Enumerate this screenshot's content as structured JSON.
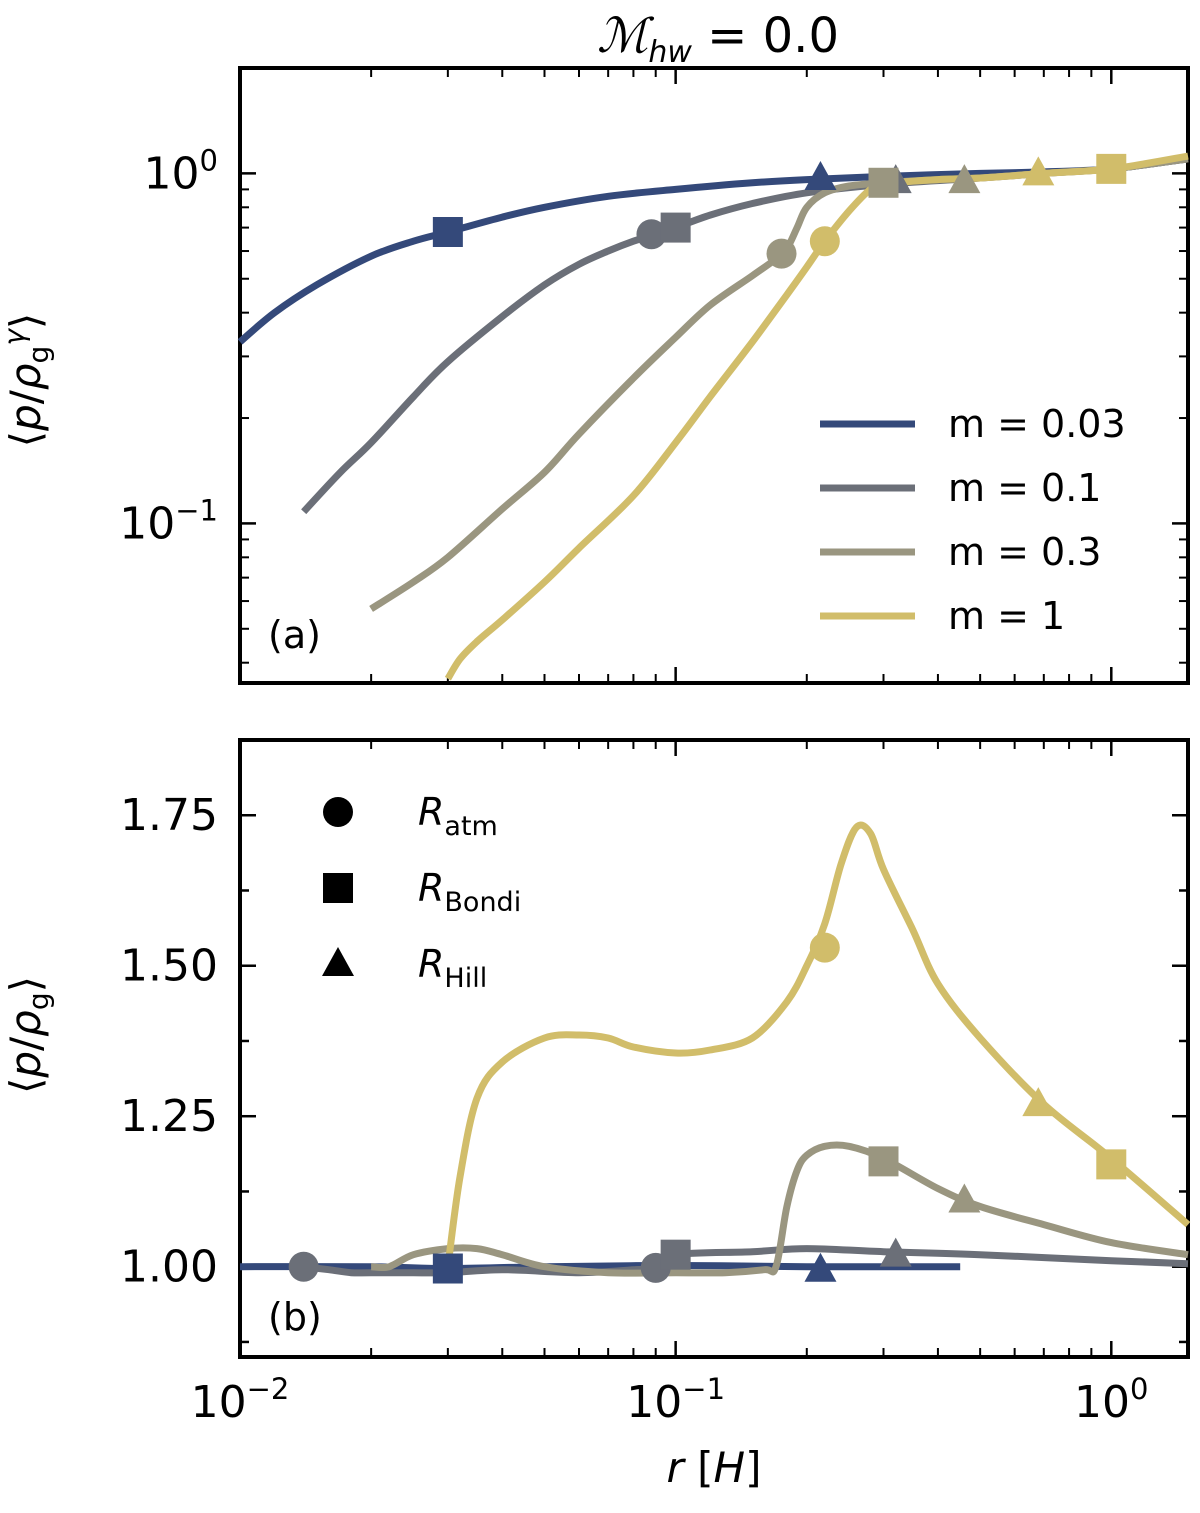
{
  "title": {
    "main": "ℳ",
    "sub": "hw",
    "rest": " = 0.0"
  },
  "chart_data": [
    {
      "type": "line",
      "panel_label": "(a)",
      "ylabel": "⟨p/ρ_g^γ⟩",
      "yscale": "log",
      "xscale": "log",
      "xlim": [
        0.01,
        1.5
      ],
      "ylim": [
        0.035,
        2.0
      ],
      "yticks": [
        {
          "base": "10",
          "exp": "−1",
          "value": 0.1
        },
        {
          "base": "10",
          "exp": "0",
          "value": 1
        }
      ],
      "series": [
        {
          "name": "m = 0.03",
          "color": "#34497a",
          "x": [
            0.01,
            0.012,
            0.015,
            0.02,
            0.025,
            0.03,
            0.04,
            0.05,
            0.07,
            0.1,
            0.15,
            0.2,
            0.3,
            0.5,
            0.7,
            1.0,
            1.5
          ],
          "y": [
            0.33,
            0.4,
            0.48,
            0.58,
            0.64,
            0.68,
            0.75,
            0.8,
            0.86,
            0.9,
            0.94,
            0.96,
            0.98,
            1.0,
            1.01,
            1.03,
            1.1
          ]
        },
        {
          "name": "m = 0.1",
          "color": "#6b6f78",
          "x": [
            0.014,
            0.017,
            0.02,
            0.025,
            0.03,
            0.04,
            0.05,
            0.06,
            0.07,
            0.08,
            0.09,
            0.1,
            0.12,
            0.15,
            0.2,
            0.3,
            0.5,
            0.7,
            1.0,
            1.5
          ],
          "y": [
            0.108,
            0.14,
            0.17,
            0.23,
            0.29,
            0.39,
            0.48,
            0.55,
            0.6,
            0.64,
            0.67,
            0.7,
            0.76,
            0.82,
            0.88,
            0.93,
            0.97,
            1.0,
            1.03,
            1.1
          ]
        },
        {
          "name": "m = 0.3",
          "color": "#9a9680",
          "x": [
            0.02,
            0.025,
            0.03,
            0.04,
            0.05,
            0.06,
            0.08,
            0.1,
            0.12,
            0.15,
            0.17,
            0.18,
            0.19,
            0.2,
            0.22,
            0.25,
            0.3,
            0.4,
            0.5,
            0.7,
            1.0,
            1.5
          ],
          "y": [
            0.057,
            0.068,
            0.08,
            0.11,
            0.14,
            0.18,
            0.26,
            0.34,
            0.42,
            0.51,
            0.57,
            0.61,
            0.7,
            0.8,
            0.88,
            0.92,
            0.94,
            0.96,
            0.97,
            1.0,
            1.03,
            1.1
          ]
        },
        {
          "name": "m = 1",
          "color": "#d1bd6a",
          "x": [
            0.03,
            0.032,
            0.035,
            0.04,
            0.05,
            0.06,
            0.08,
            0.1,
            0.12,
            0.15,
            0.18,
            0.2,
            0.22,
            0.25,
            0.28,
            0.3,
            0.35,
            0.4,
            0.5,
            0.7,
            1.0,
            1.5
          ],
          "y": [
            0.036,
            0.041,
            0.046,
            0.053,
            0.068,
            0.085,
            0.12,
            0.17,
            0.23,
            0.33,
            0.45,
            0.54,
            0.64,
            0.78,
            0.9,
            0.93,
            0.95,
            0.96,
            0.97,
            1.0,
            1.03,
            1.12
          ]
        }
      ],
      "markers": [
        {
          "series": 0,
          "shape": "square",
          "x": 0.03,
          "y": 0.68
        },
        {
          "series": 0,
          "shape": "triangle",
          "x": 0.215,
          "y": 0.97
        },
        {
          "series": 1,
          "shape": "circle",
          "x": 0.088,
          "y": 0.67
        },
        {
          "series": 1,
          "shape": "square",
          "x": 0.1,
          "y": 0.7
        },
        {
          "series": 1,
          "shape": "triangle",
          "x": 0.32,
          "y": 0.95
        },
        {
          "series": 2,
          "shape": "circle",
          "x": 0.175,
          "y": 0.59
        },
        {
          "series": 2,
          "shape": "square",
          "x": 0.3,
          "y": 0.94
        },
        {
          "series": 2,
          "shape": "triangle",
          "x": 0.46,
          "y": 0.95
        },
        {
          "series": 3,
          "shape": "circle",
          "x": 0.22,
          "y": 0.64
        },
        {
          "series": 3,
          "shape": "triangle",
          "x": 0.68,
          "y": 1.0
        },
        {
          "series": 3,
          "shape": "square",
          "x": 1.0,
          "y": 1.03
        }
      ],
      "legend": {
        "position": "lower-right"
      }
    },
    {
      "type": "line",
      "panel_label": "(b)",
      "ylabel": "⟨p/ρ_g⟩",
      "xlabel": "r [H]",
      "xscale": "log",
      "xlim": [
        0.01,
        1.5
      ],
      "ylim": [
        0.85,
        1.875
      ],
      "yticks": [
        {
          "label": "1.00",
          "value": 1.0
        },
        {
          "label": "1.25",
          "value": 1.25
        },
        {
          "label": "1.50",
          "value": 1.5
        },
        {
          "label": "1.75",
          "value": 1.75
        }
      ],
      "xticks": [
        {
          "base": "10",
          "exp": "−2",
          "value": 0.01
        },
        {
          "base": "10",
          "exp": "−1",
          "value": 0.1
        },
        {
          "base": "10",
          "exp": "0",
          "value": 1
        }
      ],
      "series": [
        {
          "name": "m = 0.03",
          "color": "#34497a",
          "x": [
            0.01,
            0.02,
            0.03,
            0.05,
            0.1,
            0.2,
            0.3,
            0.45
          ],
          "y": [
            1.0,
            1.0,
            0.997,
            1.0,
            1.002,
            1.0,
            1.0,
            1.0
          ]
        },
        {
          "name": "m = 0.1",
          "color": "#6b6f78",
          "x": [
            0.014,
            0.016,
            0.018,
            0.02,
            0.025,
            0.03,
            0.04,
            0.06,
            0.08,
            0.09,
            0.1,
            0.15,
            0.2,
            0.3,
            0.5,
            1.0,
            1.5
          ],
          "y": [
            1.0,
            0.995,
            0.99,
            0.99,
            0.99,
            0.99,
            0.995,
            0.99,
            0.995,
            0.998,
            1.02,
            1.025,
            1.03,
            1.025,
            1.02,
            1.01,
            1.005
          ]
        },
        {
          "name": "m = 0.3",
          "color": "#9a9680",
          "x": [
            0.02,
            0.022,
            0.025,
            0.03,
            0.035,
            0.04,
            0.05,
            0.07,
            0.1,
            0.13,
            0.16,
            0.17,
            0.18,
            0.19,
            0.2,
            0.22,
            0.25,
            0.3,
            0.4,
            0.5,
            0.7,
            1.0,
            1.5
          ],
          "y": [
            1.0,
            1.0,
            1.02,
            1.03,
            1.03,
            1.02,
            1.0,
            0.99,
            0.99,
            0.99,
            0.995,
            1.0,
            1.1,
            1.16,
            1.185,
            1.2,
            1.2,
            1.18,
            1.13,
            1.1,
            1.07,
            1.04,
            1.02
          ]
        },
        {
          "name": "m = 1",
          "color": "#d1bd6a",
          "x": [
            0.03,
            0.032,
            0.035,
            0.04,
            0.05,
            0.06,
            0.07,
            0.08,
            0.1,
            0.12,
            0.15,
            0.18,
            0.2,
            0.22,
            0.24,
            0.26,
            0.28,
            0.3,
            0.35,
            0.4,
            0.5,
            0.7,
            1.0,
            1.5
          ],
          "y": [
            1.0,
            1.15,
            1.28,
            1.34,
            1.38,
            1.385,
            1.38,
            1.365,
            1.355,
            1.36,
            1.38,
            1.44,
            1.5,
            1.57,
            1.67,
            1.73,
            1.72,
            1.66,
            1.56,
            1.47,
            1.38,
            1.27,
            1.18,
            1.07
          ]
        }
      ],
      "markers": [
        {
          "series": 0,
          "shape": "square",
          "x": 0.03,
          "y": 0.997
        },
        {
          "series": 0,
          "shape": "triangle",
          "x": 0.215,
          "y": 0.995
        },
        {
          "series": 1,
          "shape": "circle",
          "x": 0.014,
          "y": 1.0
        },
        {
          "series": 1,
          "shape": "circle",
          "x": 0.09,
          "y": 0.998
        },
        {
          "series": 1,
          "shape": "square",
          "x": 0.1,
          "y": 1.02
        },
        {
          "series": 1,
          "shape": "triangle",
          "x": 0.32,
          "y": 1.02
        },
        {
          "series": 2,
          "shape": "square",
          "x": 0.3,
          "y": 1.175
        },
        {
          "series": 2,
          "shape": "triangle",
          "x": 0.46,
          "y": 1.11
        },
        {
          "series": 3,
          "shape": "circle",
          "x": 0.22,
          "y": 1.53
        },
        {
          "series": 3,
          "shape": "triangle",
          "x": 0.68,
          "y": 1.27
        },
        {
          "series": 3,
          "shape": "square",
          "x": 1.0,
          "y": 1.17
        }
      ],
      "marker_legend": [
        {
          "shape": "circle",
          "symbol": "R",
          "sub": "atm"
        },
        {
          "shape": "square",
          "symbol": "R",
          "sub": "Bondi"
        },
        {
          "shape": "triangle",
          "symbol": "R",
          "sub": "Hill"
        }
      ],
      "legend": {
        "position": "upper-left"
      }
    }
  ]
}
